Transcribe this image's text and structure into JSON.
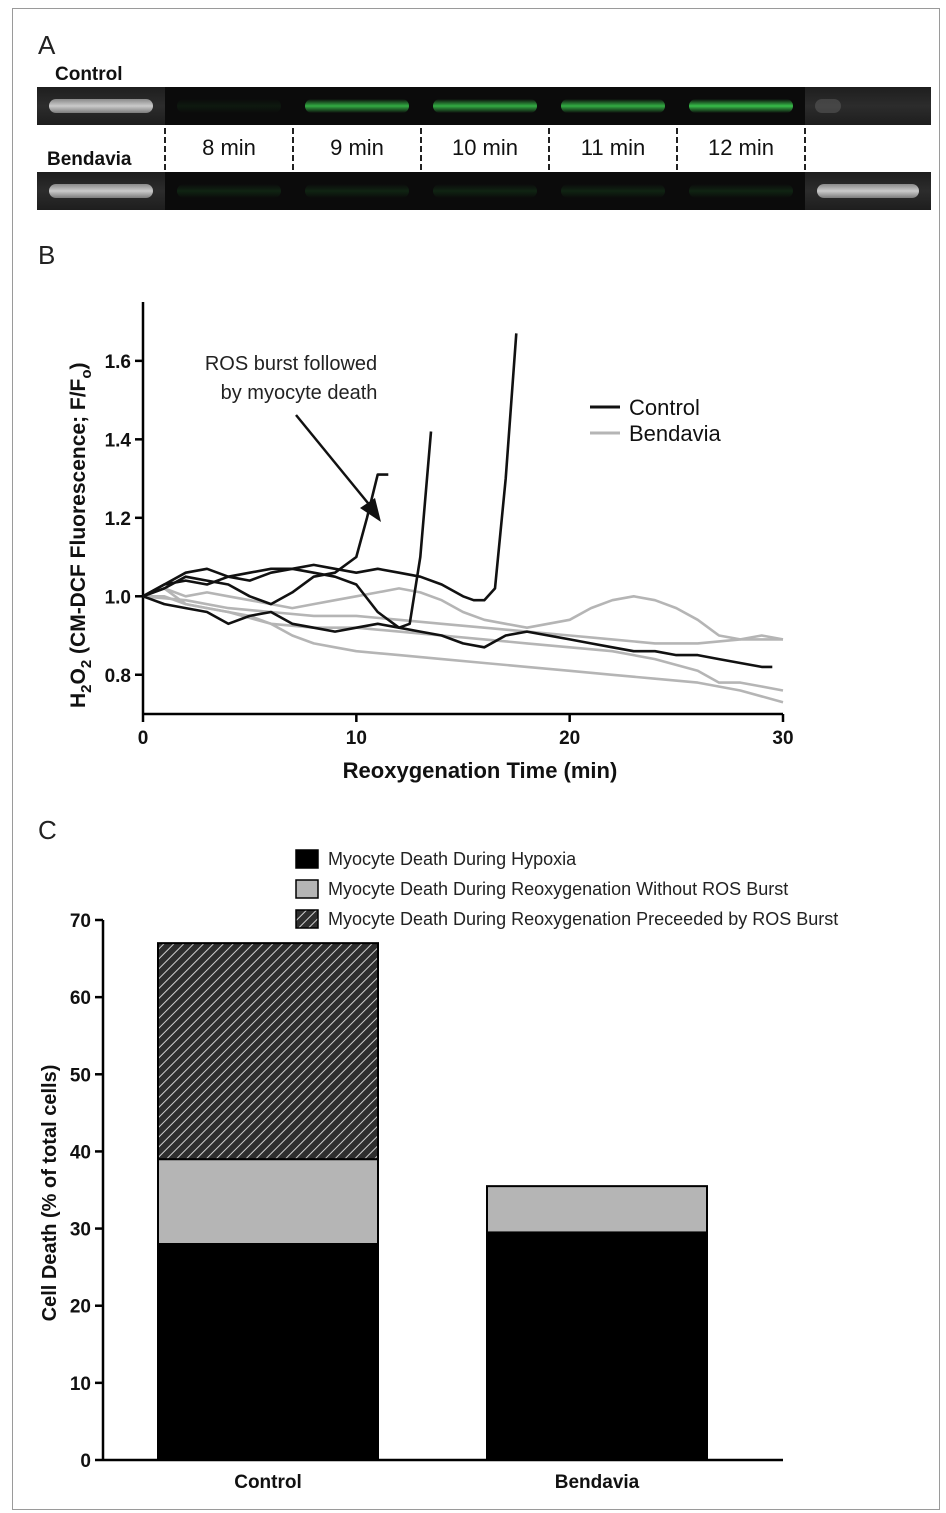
{
  "panelA": {
    "letter": "A",
    "control_label": "Control",
    "bendavia_label": "Bendavia",
    "time_labels": [
      "8 min",
      "9 min",
      "10 min",
      "11 min",
      "12 min"
    ],
    "control_green_intensity": [
      0.15,
      0.8,
      0.8,
      0.8,
      1.0
    ],
    "bendavia_green_intensity": [
      0.35,
      0.35,
      0.35,
      0.35,
      0.35
    ]
  },
  "panelB": {
    "letter": "B",
    "annotation_line1": "ROS burst followed",
    "annotation_line2": "by myocyte death",
    "chart_data": {
      "type": "line",
      "xlabel": "Reoxygenation Time (min)",
      "ylabel_parts": {
        "h": "H",
        "sub2": "2",
        "o": "O",
        "mid": " (CM-DCF Fluorescence; F/F",
        "sub_o": "o",
        "end": ")"
      },
      "xlim": [
        0,
        30
      ],
      "ylim": [
        0.7,
        1.75
      ],
      "x_ticks": [
        0,
        10,
        20,
        30
      ],
      "y_ticks": [
        0.8,
        1.0,
        1.2,
        1.4,
        1.6
      ],
      "x_tick_labels": [
        "0",
        "10",
        "20",
        "30"
      ],
      "y_tick_labels": [
        "0.8",
        "1.0",
        "1.2",
        "1.4",
        "1.6"
      ],
      "legend": [
        {
          "name": "Control",
          "color": "#111111"
        },
        {
          "name": "Bendavia",
          "color": "#b5b5b5"
        }
      ],
      "legend_position": "right",
      "series": [
        {
          "group": "Bendavia",
          "color": "#b5b5b5",
          "points": [
            [
              0,
              1.0
            ],
            [
              1,
              1.02
            ],
            [
              2,
              0.98
            ],
            [
              3,
              0.97
            ],
            [
              4,
              0.96
            ],
            [
              5,
              0.95
            ],
            [
              6,
              0.93
            ],
            [
              7,
              0.9
            ],
            [
              8,
              0.88
            ],
            [
              9,
              0.87
            ],
            [
              10,
              0.86
            ],
            [
              12,
              0.85
            ],
            [
              14,
              0.84
            ],
            [
              16,
              0.83
            ],
            [
              18,
              0.82
            ],
            [
              20,
              0.81
            ],
            [
              22,
              0.8
            ],
            [
              24,
              0.79
            ],
            [
              26,
              0.78
            ],
            [
              28,
              0.76
            ],
            [
              30,
              0.73
            ]
          ]
        },
        {
          "group": "Bendavia",
          "color": "#b5b5b5",
          "points": [
            [
              0,
              1.0
            ],
            [
              1,
              1.0
            ],
            [
              2,
              0.98
            ],
            [
              4,
              0.96
            ],
            [
              6,
              0.93
            ],
            [
              8,
              0.92
            ],
            [
              10,
              0.92
            ],
            [
              12,
              0.91
            ],
            [
              14,
              0.9
            ],
            [
              16,
              0.89
            ],
            [
              18,
              0.88
            ],
            [
              20,
              0.87
            ],
            [
              22,
              0.86
            ],
            [
              24,
              0.84
            ],
            [
              26,
              0.81
            ],
            [
              27,
              0.78
            ],
            [
              28,
              0.78
            ],
            [
              29,
              0.77
            ],
            [
              30,
              0.76
            ]
          ]
        },
        {
          "group": "Bendavia",
          "color": "#b5b5b5",
          "points": [
            [
              0,
              1.0
            ],
            [
              1,
              1.02
            ],
            [
              2,
              1.0
            ],
            [
              3,
              1.01
            ],
            [
              4,
              1.0
            ],
            [
              5,
              0.99
            ],
            [
              6,
              0.98
            ],
            [
              7,
              0.97
            ],
            [
              8,
              0.98
            ],
            [
              9,
              0.99
            ],
            [
              10,
              1.0
            ],
            [
              11,
              1.01
            ],
            [
              12,
              1.02
            ],
            [
              13,
              1.01
            ],
            [
              14,
              0.99
            ],
            [
              15,
              0.96
            ],
            [
              16,
              0.94
            ],
            [
              17,
              0.93
            ],
            [
              18,
              0.92
            ],
            [
              20,
              0.94
            ],
            [
              21,
              0.97
            ],
            [
              22,
              0.99
            ],
            [
              23,
              1.0
            ],
            [
              24,
              0.99
            ],
            [
              25,
              0.97
            ],
            [
              26,
              0.94
            ],
            [
              27,
              0.9
            ],
            [
              28,
              0.89
            ],
            [
              29,
              0.9
            ],
            [
              30,
              0.89
            ]
          ]
        },
        {
          "group": "Bendavia",
          "color": "#b5b5b5",
          "points": [
            [
              0,
              1.0
            ],
            [
              2,
              0.99
            ],
            [
              4,
              0.97
            ],
            [
              6,
              0.96
            ],
            [
              8,
              0.95
            ],
            [
              10,
              0.95
            ],
            [
              12,
              0.94
            ],
            [
              14,
              0.93
            ],
            [
              16,
              0.92
            ],
            [
              18,
              0.91
            ],
            [
              20,
              0.9
            ],
            [
              22,
              0.89
            ],
            [
              24,
              0.88
            ],
            [
              26,
              0.88
            ],
            [
              28,
              0.89
            ],
            [
              30,
              0.89
            ]
          ]
        },
        {
          "group": "Control",
          "color": "#111111",
          "points": [
            [
              0,
              1.0
            ],
            [
              1,
              1.02
            ],
            [
              2,
              1.05
            ],
            [
              3,
              1.04
            ],
            [
              4,
              1.03
            ],
            [
              5,
              1.0
            ],
            [
              6,
              0.98
            ],
            [
              7,
              1.01
            ],
            [
              8,
              1.05
            ],
            [
              9,
              1.06
            ],
            [
              10,
              1.1
            ],
            [
              10.5,
              1.2
            ],
            [
              11,
              1.31
            ],
            [
              11.5,
              1.31
            ]
          ]
        },
        {
          "group": "Control",
          "color": "#111111",
          "points": [
            [
              0,
              1.0
            ],
            [
              1,
              1.03
            ],
            [
              2,
              1.06
            ],
            [
              3,
              1.07
            ],
            [
              4,
              1.05
            ],
            [
              5,
              1.04
            ],
            [
              6,
              1.06
            ],
            [
              7,
              1.07
            ],
            [
              8,
              1.06
            ],
            [
              9,
              1.05
            ],
            [
              10,
              1.03
            ],
            [
              11,
              0.96
            ],
            [
              12,
              0.92
            ],
            [
              12.5,
              0.93
            ],
            [
              13,
              1.1
            ],
            [
              13.5,
              1.42
            ]
          ]
        },
        {
          "group": "Control",
          "color": "#111111",
          "points": [
            [
              0,
              1.0
            ],
            [
              1,
              1.03
            ],
            [
              2,
              1.04
            ],
            [
              3,
              1.03
            ],
            [
              4,
              1.05
            ],
            [
              5,
              1.06
            ],
            [
              6,
              1.07
            ],
            [
              7,
              1.07
            ],
            [
              8,
              1.08
            ],
            [
              9,
              1.07
            ],
            [
              10,
              1.06
            ],
            [
              11,
              1.07
            ],
            [
              12,
              1.06
            ],
            [
              13,
              1.05
            ],
            [
              14,
              1.03
            ],
            [
              15,
              1.0
            ],
            [
              15.5,
              0.99
            ],
            [
              16,
              0.99
            ],
            [
              16.5,
              1.02
            ],
            [
              17,
              1.3
            ],
            [
              17.5,
              1.67
            ]
          ]
        },
        {
          "group": "Control",
          "color": "#111111",
          "points": [
            [
              0,
              1.0
            ],
            [
              1,
              0.98
            ],
            [
              2,
              0.97
            ],
            [
              3,
              0.96
            ],
            [
              4,
              0.93
            ],
            [
              5,
              0.95
            ],
            [
              6,
              0.96
            ],
            [
              7,
              0.93
            ],
            [
              8,
              0.92
            ],
            [
              9,
              0.91
            ],
            [
              10,
              0.92
            ],
            [
              11,
              0.93
            ],
            [
              12,
              0.92
            ],
            [
              13,
              0.91
            ],
            [
              14,
              0.9
            ],
            [
              15,
              0.88
            ],
            [
              16,
              0.87
            ],
            [
              17,
              0.9
            ],
            [
              18,
              0.91
            ],
            [
              19,
              0.9
            ],
            [
              20,
              0.89
            ],
            [
              21,
              0.88
            ],
            [
              22,
              0.87
            ],
            [
              23,
              0.86
            ],
            [
              24,
              0.86
            ],
            [
              25,
              0.85
            ],
            [
              26,
              0.85
            ],
            [
              27,
              0.84
            ],
            [
              28,
              0.83
            ],
            [
              29,
              0.82
            ],
            [
              29.5,
              0.82
            ]
          ]
        }
      ]
    }
  },
  "panelC": {
    "letter": "C",
    "chart_data": {
      "type": "bar",
      "stacked": true,
      "categories": [
        "Control",
        "Bendavia"
      ],
      "ylabel": "Cell Death (% of total  cells)",
      "xlabel": "",
      "ylim": [
        0,
        70
      ],
      "y_ticks": [
        0,
        10,
        20,
        30,
        40,
        50,
        60,
        70
      ],
      "y_tick_labels": [
        "0",
        "10",
        "20",
        "30",
        "40",
        "50",
        "60",
        "70"
      ],
      "series": [
        {
          "name": "Myocyte Death During Hypoxia",
          "fill": "#000000",
          "pattern": "solid",
          "values": [
            28,
            29.5
          ]
        },
        {
          "name": "Myocyte Death During Reoxygenation Without ROS Burst",
          "fill": "#b5b5b5",
          "pattern": "solid",
          "values": [
            11,
            6
          ]
        },
        {
          "name": "Myocyte Death During Reoxygenation Preceeded by ROS Burst",
          "fill": "#3a3a3a",
          "pattern": "hatch",
          "values": [
            28,
            0
          ]
        }
      ],
      "legend_position": "top"
    }
  }
}
